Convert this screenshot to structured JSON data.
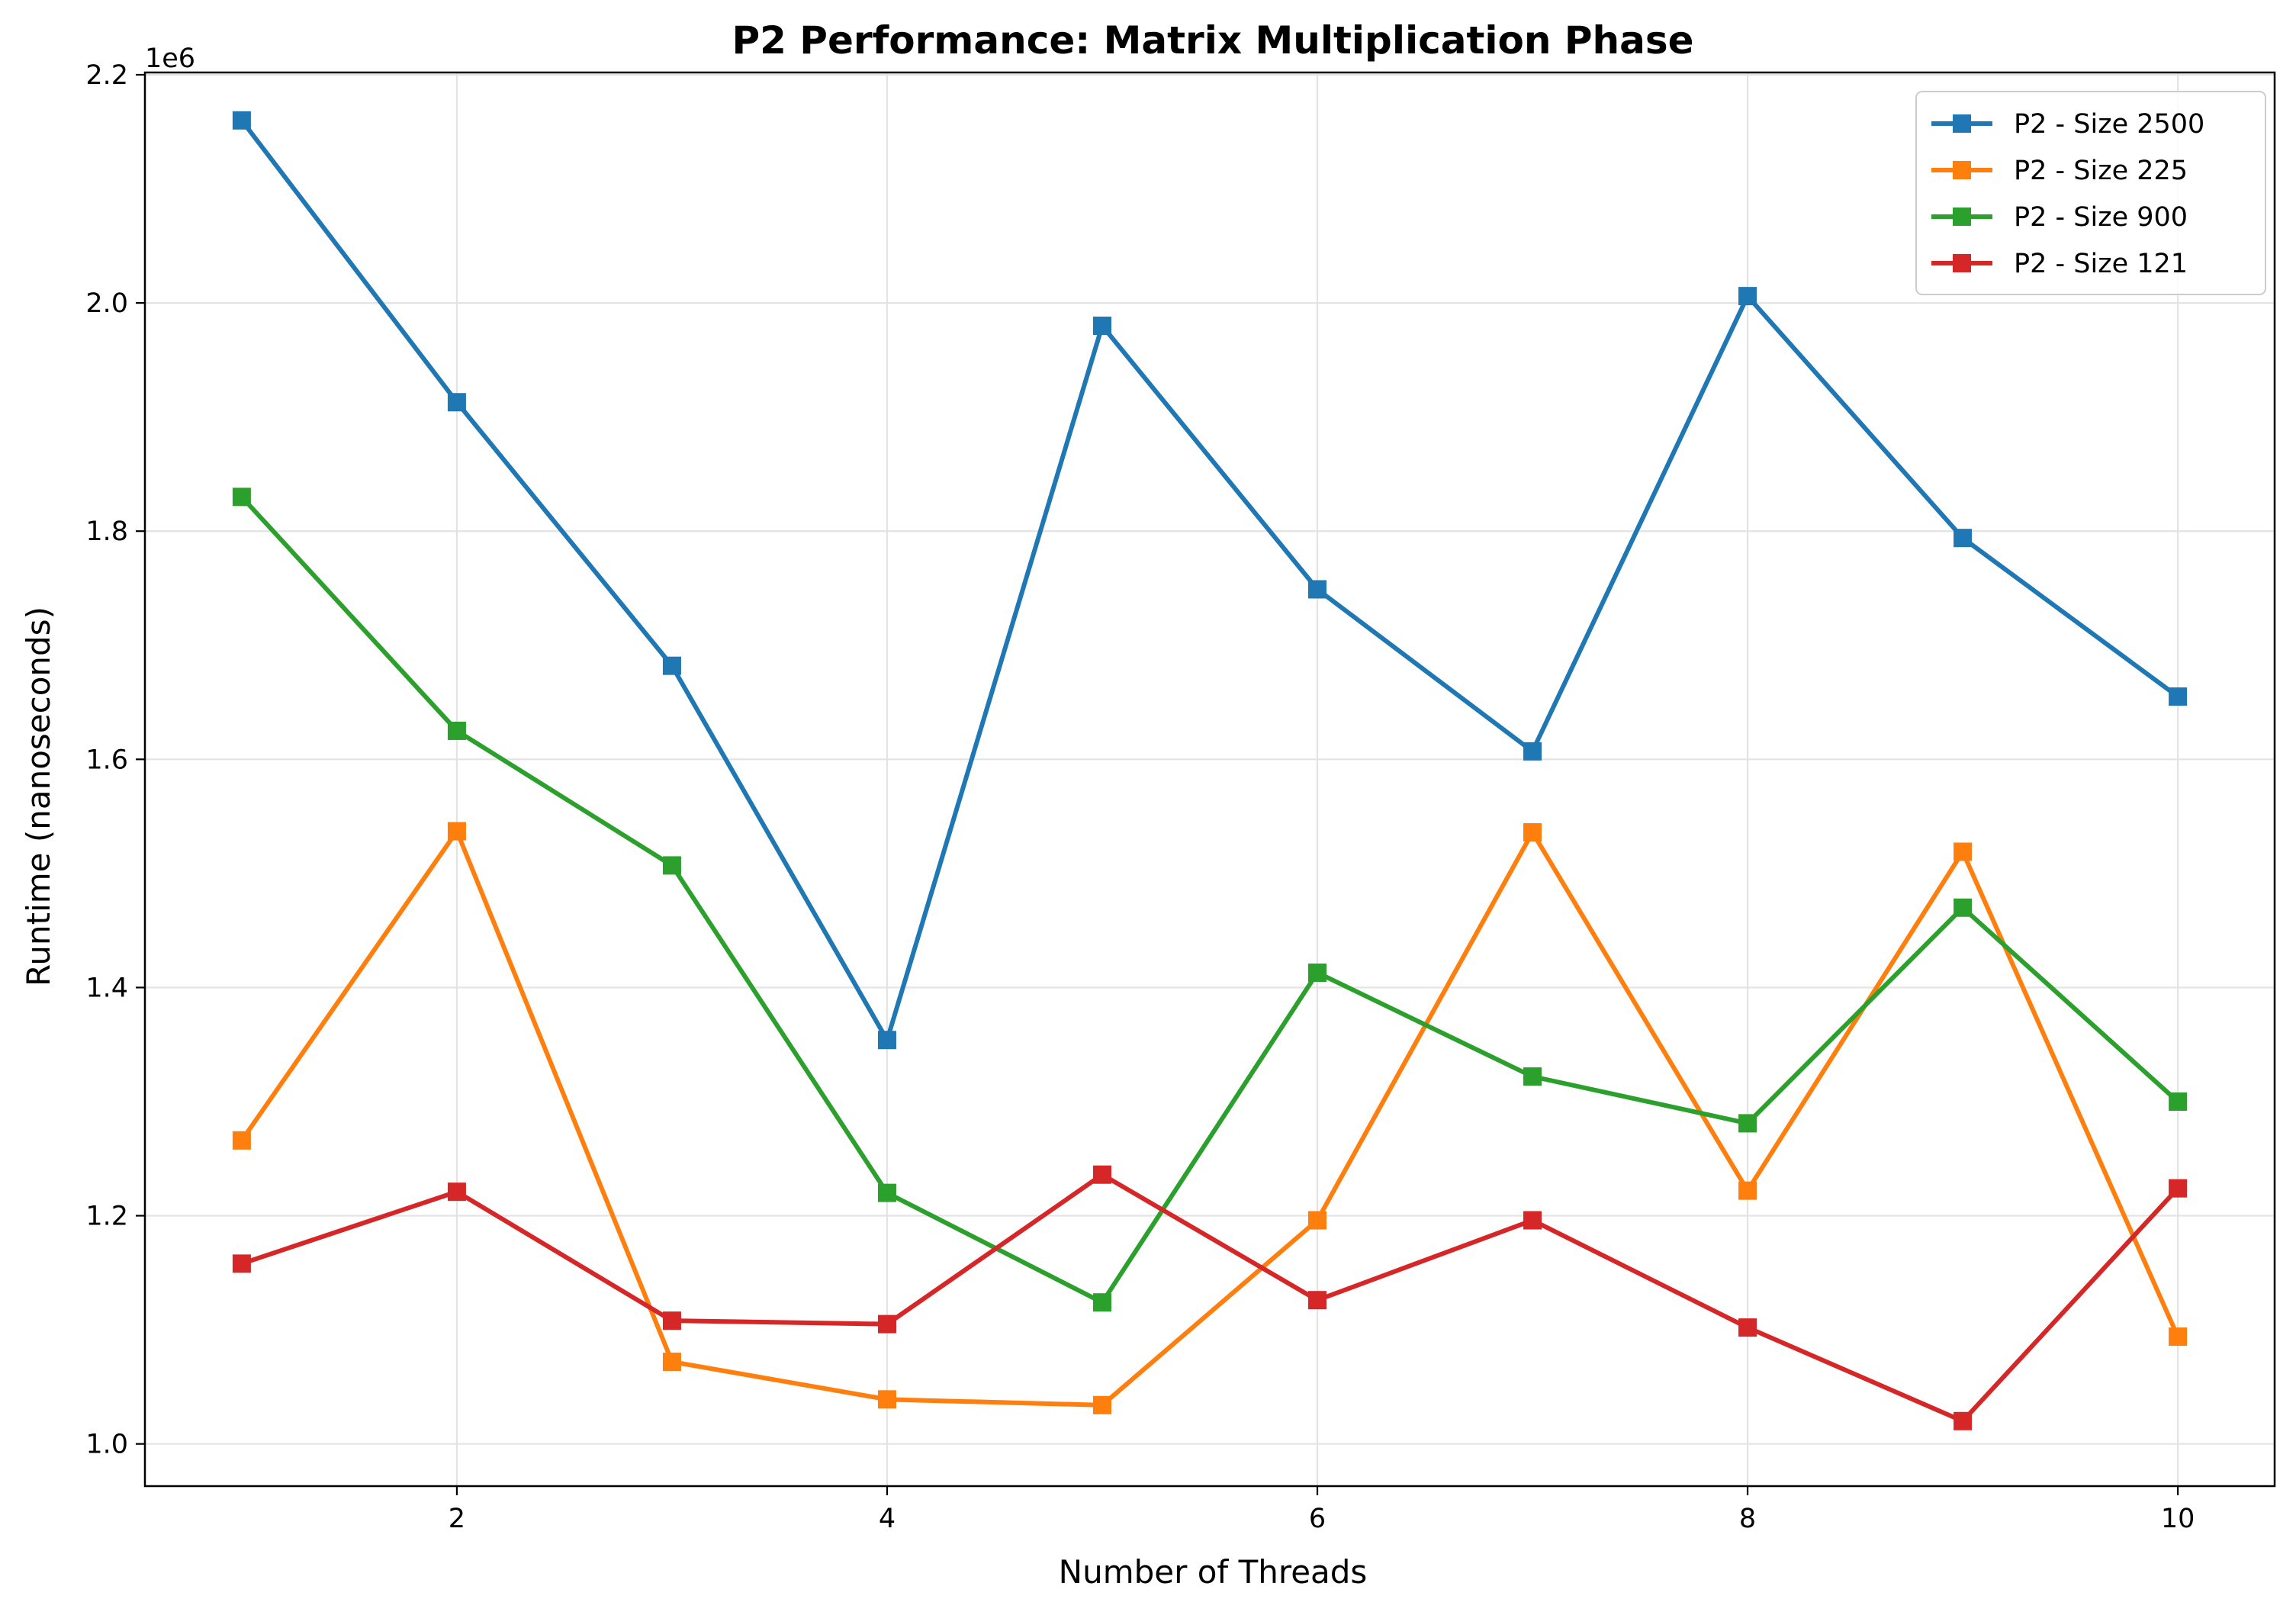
{
  "chart_data": {
    "type": "line",
    "title": "P2 Performance: Matrix Multiplication Phase",
    "xlabel": "Number of Threads",
    "ylabel": "Runtime (nanoseconds)",
    "y_offset_label": "1e6",
    "x": [
      1,
      2,
      3,
      4,
      5,
      6,
      7,
      8,
      9,
      10
    ],
    "xlim": [
      0.55,
      10.45
    ],
    "ylim": [
      0.963,
      2.202
    ],
    "x_ticks": [
      2,
      4,
      6,
      8,
      10
    ],
    "x_tick_labels": [
      "2",
      "4",
      "6",
      "8",
      "10"
    ],
    "y_ticks": [
      1.0,
      1.2,
      1.4,
      1.6,
      1.8,
      2.0,
      2.2
    ],
    "y_tick_labels": [
      "1.0",
      "1.2",
      "1.4",
      "1.6",
      "1.8",
      "2.0",
      "2.2"
    ],
    "grid": true,
    "legend_position": "top-right",
    "marker": "square",
    "series": [
      {
        "name": "P2 - Size 2500",
        "color": "#1f77b4",
        "values": [
          2.16,
          1.913,
          1.682,
          1.354,
          1.98,
          1.749,
          1.607,
          2.006,
          1.794,
          1.655
        ]
      },
      {
        "name": "P2 - Size 225",
        "color": "#ff7f0e",
        "values": [
          1.266,
          1.537,
          1.072,
          1.039,
          1.034,
          1.196,
          1.536,
          1.222,
          1.519,
          1.094
        ]
      },
      {
        "name": "P2 - Size 900",
        "color": "#2ca02c",
        "values": [
          1.83,
          1.625,
          1.507,
          1.22,
          1.124,
          1.413,
          1.322,
          1.281,
          1.47,
          1.3
        ]
      },
      {
        "name": "P2 - Size 121",
        "color": "#d62728",
        "values": [
          1.158,
          1.221,
          1.108,
          1.105,
          1.236,
          1.126,
          1.196,
          1.102,
          1.02,
          1.224
        ]
      }
    ]
  }
}
